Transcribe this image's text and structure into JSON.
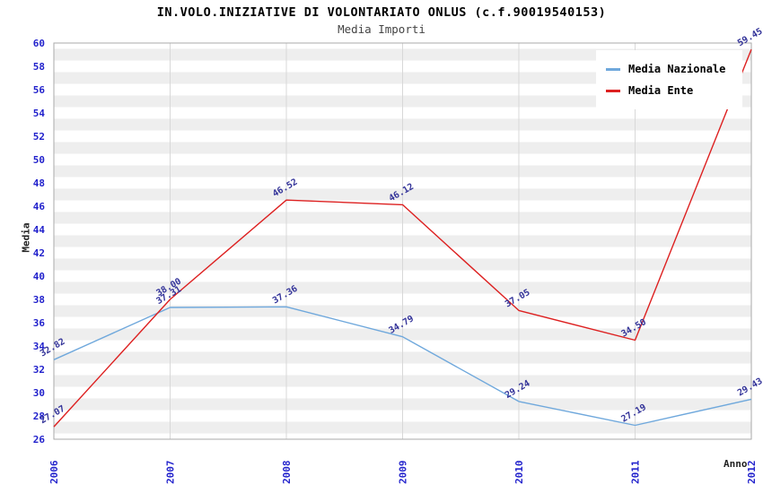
{
  "header": {
    "title": "IN.VOLO.INIZIATIVE DI VOLONTARIATO ONLUS (c.f.90019540153)",
    "subtitle": "Media Importi"
  },
  "chart_data": {
    "type": "line",
    "title": "IN.VOLO.INIZIATIVE DI VOLONTARIATO ONLUS (c.f.90019540153)",
    "subtitle": "Media Importi",
    "x": [
      "2006",
      "2007",
      "2008",
      "2009",
      "2010",
      "2011",
      "2012"
    ],
    "series": [
      {
        "name": "Media Nazionale",
        "color": "#6fa8dc",
        "values": [
          32.82,
          37.31,
          37.36,
          34.79,
          29.24,
          27.19,
          29.43
        ]
      },
      {
        "name": "Media Ente",
        "color": "#dd2020",
        "values": [
          27.07,
          38.0,
          46.52,
          46.12,
          37.05,
          34.5,
          59.45
        ]
      }
    ],
    "xlabel": "Anno",
    "ylabel": "Media",
    "ylim": [
      26,
      60
    ],
    "yticks": [
      26,
      28,
      30,
      32,
      34,
      36,
      38,
      40,
      42,
      44,
      46,
      48,
      50,
      52,
      54,
      56,
      58,
      60
    ],
    "grid": "horizontal-bands-and-vertical-lines",
    "legend_position": "top-right",
    "value_label_format": "2-decimals",
    "colors": {
      "tick_label": "#2222cc",
      "value_label": "#333399",
      "band": "#eeeeee",
      "gridline": "#d8d8d8",
      "plot_border": "#aaaaaa"
    }
  }
}
